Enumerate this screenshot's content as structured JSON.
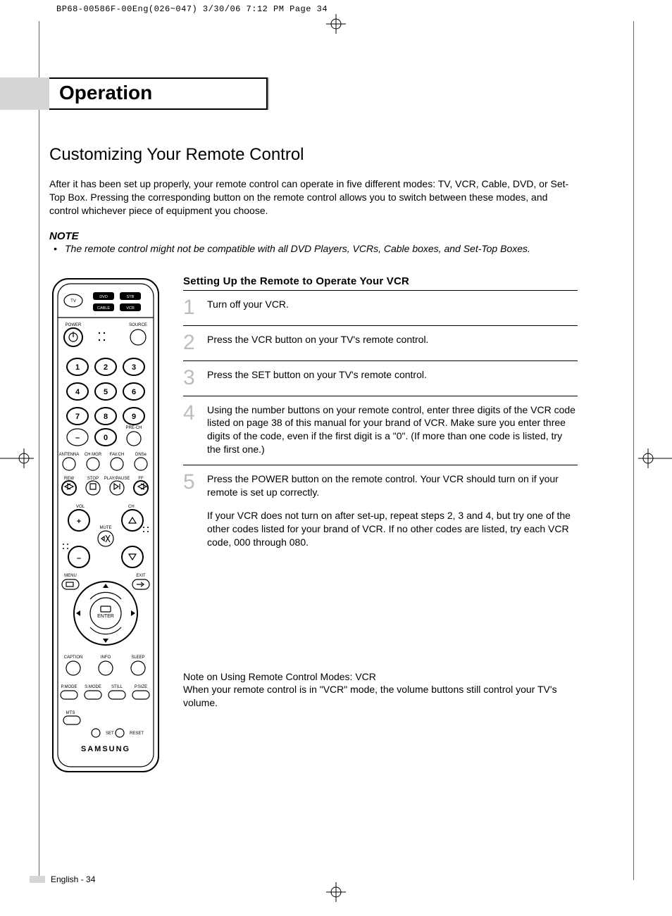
{
  "print_header": "BP68-00586F-00Eng(026~047)  3/30/06  7:12 PM  Page 34",
  "chapter_title": "Operation",
  "section_title": "Customizing Your Remote Control",
  "intro": "After it has been set up properly, your remote control can operate in five different modes: TV, VCR, Cable, DVD, or Set-Top Box. Pressing the corresponding button on the remote control allows you to switch between these modes, and control whichever piece of equipment you choose.",
  "note_head": "NOTE",
  "note_body": "The remote control might not be compatible with all DVD Players, VCRs, Cable boxes, and Set-Top Boxes.",
  "steps_title": "Setting Up the Remote to Operate Your VCR",
  "steps": [
    {
      "n": "1",
      "text": "Turn off your VCR."
    },
    {
      "n": "2",
      "text": "Press the VCR button on your TV's remote control."
    },
    {
      "n": "3",
      "text": "Press the SET button on your TV's remote control."
    },
    {
      "n": "4",
      "text": "Using the number buttons on your remote control, enter three digits of the VCR code listed on page 38 of this manual for your brand of VCR. Make sure you enter three digits of the code, even if the first digit is a \"0\". (If more than one code is listed, try the first one.)"
    },
    {
      "n": "5",
      "text": "Press the POWER button on the remote control. Your VCR should turn on if your remote is set up correctly.",
      "sub": "If your VCR does not turn on after set-up, repeat steps 2, 3 and 4, but try one of the other codes listed for your brand of VCR. If no other codes are listed, try each VCR code, 000 through 080."
    }
  ],
  "footnote": "Note on Using Remote Control Modes: VCR\nWhen your remote control is in \"VCR\" mode, the volume buttons still control your TV's volume.",
  "page_label": "English - 34",
  "remote": {
    "brand": "SAMSUNG",
    "mode_labels": {
      "tv": "TV",
      "dvd": "DVD",
      "stb": "STB",
      "cable": "CABLE",
      "vcr": "VCR"
    },
    "top_labels": {
      "power": "POWER",
      "source": "SOURCE"
    },
    "numpad": [
      "1",
      "2",
      "3",
      "4",
      "5",
      "6",
      "7",
      "8",
      "9",
      "0"
    ],
    "dash_label": "–",
    "prech_label": "PRE-CH",
    "row1_labels": [
      "ANTENNA",
      "CH MGR",
      "FAV.CH",
      "DNSe"
    ],
    "transport_labels": [
      "REW",
      "STOP",
      "PLAY/PAUSE",
      "FF"
    ],
    "vol_label": "VOL",
    "ch_label": "CH",
    "mute_label": "MUTE",
    "menu_label": "MENU",
    "exit_label": "EXIT",
    "enter_label": "ENTER",
    "bottom_row_labels": [
      "CAPTION",
      "INFO",
      "SLEEP"
    ],
    "mode_row_labels": [
      "P.MODE",
      "S.MODE",
      "STILL",
      "P.SIZE"
    ],
    "mts_label": "MTS",
    "set_reset_labels": [
      "SET",
      "RESET"
    ]
  },
  "colors": {
    "gray_bar": "#d6d6d6",
    "step_number": "#bdbdbd",
    "frame_border": "#666666"
  },
  "typography": {
    "chapter_title_pt": 28,
    "section_title_pt": 24,
    "body_pt": 14,
    "step_num_pt": 30
  }
}
